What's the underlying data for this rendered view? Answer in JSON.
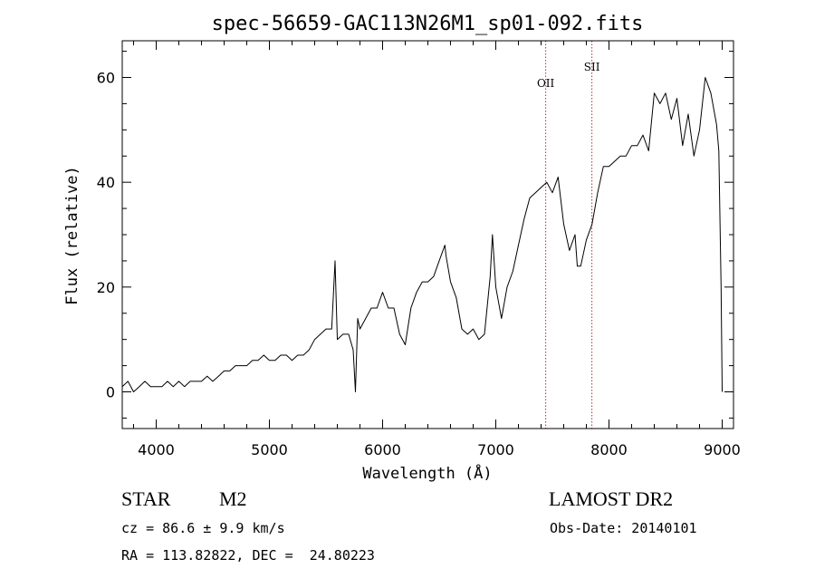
{
  "chart_data": {
    "type": "line",
    "title": "spec-56659-GAC113N26M1_sp01-092.fits",
    "xlabel": "Wavelength (Å)",
    "ylabel": "Flux (relative)",
    "xlim": [
      3700,
      9100
    ],
    "ylim": [
      -7,
      67
    ],
    "xticks": [
      4000,
      5000,
      6000,
      7000,
      8000,
      9000
    ],
    "yticks": [
      0,
      20,
      40,
      60
    ],
    "grid": false,
    "series": [
      {
        "x": [
          3700,
          3750,
          3800,
          3850,
          3900,
          3950,
          4000,
          4050,
          4100,
          4150,
          4200,
          4250,
          4300,
          4350,
          4400,
          4450,
          4500,
          4550,
          4600,
          4650,
          4700,
          4750,
          4800,
          4850,
          4900,
          4950,
          5000,
          5050,
          5100,
          5150,
          5200,
          5250,
          5300,
          5350,
          5400,
          5450,
          5500,
          5550,
          5580,
          5600,
          5650,
          5700,
          5740,
          5760,
          5780,
          5800,
          5850,
          5900,
          5950,
          6000,
          6050,
          6100,
          6150,
          6200,
          6250,
          6300,
          6350,
          6400,
          6450,
          6500,
          6550,
          6560,
          6600,
          6650,
          6700,
          6750,
          6800,
          6850,
          6900,
          6950,
          6970,
          7000,
          7050,
          7100,
          7150,
          7200,
          7250,
          7300,
          7350,
          7400,
          7450,
          7500,
          7550,
          7600,
          7650,
          7700,
          7720,
          7750,
          7800,
          7850,
          7900,
          7950,
          8000,
          8050,
          8100,
          8150,
          8200,
          8250,
          8300,
          8350,
          8400,
          8450,
          8500,
          8550,
          8600,
          8650,
          8700,
          8750,
          8800,
          8850,
          8900,
          8950,
          8970,
          8990,
          9000
        ],
        "y": [
          1,
          2,
          0,
          1,
          2,
          1,
          1,
          1,
          2,
          1,
          2,
          1,
          2,
          2,
          2,
          3,
          2,
          3,
          4,
          4,
          5,
          5,
          5,
          6,
          6,
          7,
          6,
          6,
          7,
          7,
          6,
          7,
          7,
          8,
          10,
          11,
          12,
          12,
          25,
          10,
          11,
          11,
          8,
          0,
          14,
          12,
          14,
          16,
          16,
          19,
          16,
          16,
          11,
          9,
          16,
          19,
          21,
          21,
          22,
          25,
          28,
          26,
          21,
          18,
          12,
          11,
          12,
          10,
          11,
          22,
          30,
          20,
          14,
          20,
          23,
          28,
          33,
          37,
          38,
          39,
          40,
          38,
          41,
          32,
          27,
          30,
          24,
          24,
          29,
          32,
          38,
          43,
          43,
          44,
          45,
          45,
          47,
          47,
          49,
          46,
          57,
          55,
          57,
          52,
          56,
          47,
          53,
          45,
          50,
          60,
          57,
          51,
          46,
          20,
          0
        ],
        "color": "#000000"
      }
    ],
    "annotations": [
      {
        "label": "OII",
        "x": 7441
      },
      {
        "label": "SII",
        "x": 7849
      }
    ]
  },
  "info": {
    "object_class": "STAR",
    "subclass": "M2",
    "survey": "LAMOST DR2",
    "cz": "cz = 86.6 ± 9.9 km/s",
    "obs_date": "Obs-Date: 20140101",
    "coords": "RA = 113.82822, DEC =  24.80223"
  }
}
